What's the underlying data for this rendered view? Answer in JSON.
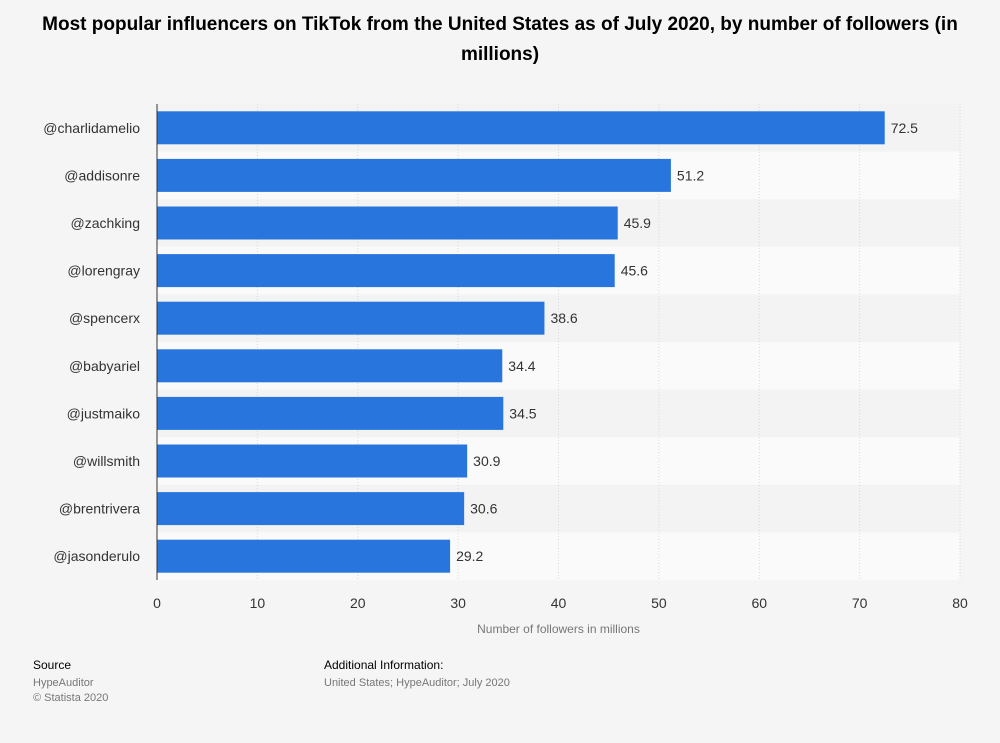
{
  "chart_data": {
    "type": "bar",
    "orientation": "horizontal",
    "title": "Most popular influencers on TikTok from the United States as of July 2020, by number of followers (in millions)",
    "categories": [
      "@charlidamelio",
      "@addisonre",
      "@zachking",
      "@lorengray",
      "@spencerx",
      "@babyariel",
      "@justmaiko",
      "@willsmith",
      "@brentrivera",
      "@jasonderulo"
    ],
    "values": [
      72.5,
      51.2,
      45.9,
      45.6,
      38.6,
      34.4,
      34.5,
      30.9,
      30.6,
      29.2
    ],
    "value_labels": [
      "72.5",
      "51.2",
      "45.9",
      "45.6",
      "38.6",
      "34.4",
      "34.5",
      "30.9",
      "30.6",
      "29.2"
    ],
    "xlabel": "Number of followers in millions",
    "ylabel": "",
    "xlim": [
      0,
      80
    ],
    "xticks": [
      0,
      10,
      20,
      30,
      40,
      50,
      60,
      70,
      80
    ],
    "xtick_labels": [
      "0",
      "10",
      "20",
      "30",
      "40",
      "50",
      "60",
      "70",
      "80"
    ],
    "grid": true,
    "bar_color": "#2876dd"
  },
  "footer": {
    "source_label": "Source",
    "source_lines": [
      "HypeAuditor",
      "© Statista 2020"
    ],
    "additional_label": "Additional Information:",
    "additional_text": "United States; HypeAuditor; July 2020"
  }
}
